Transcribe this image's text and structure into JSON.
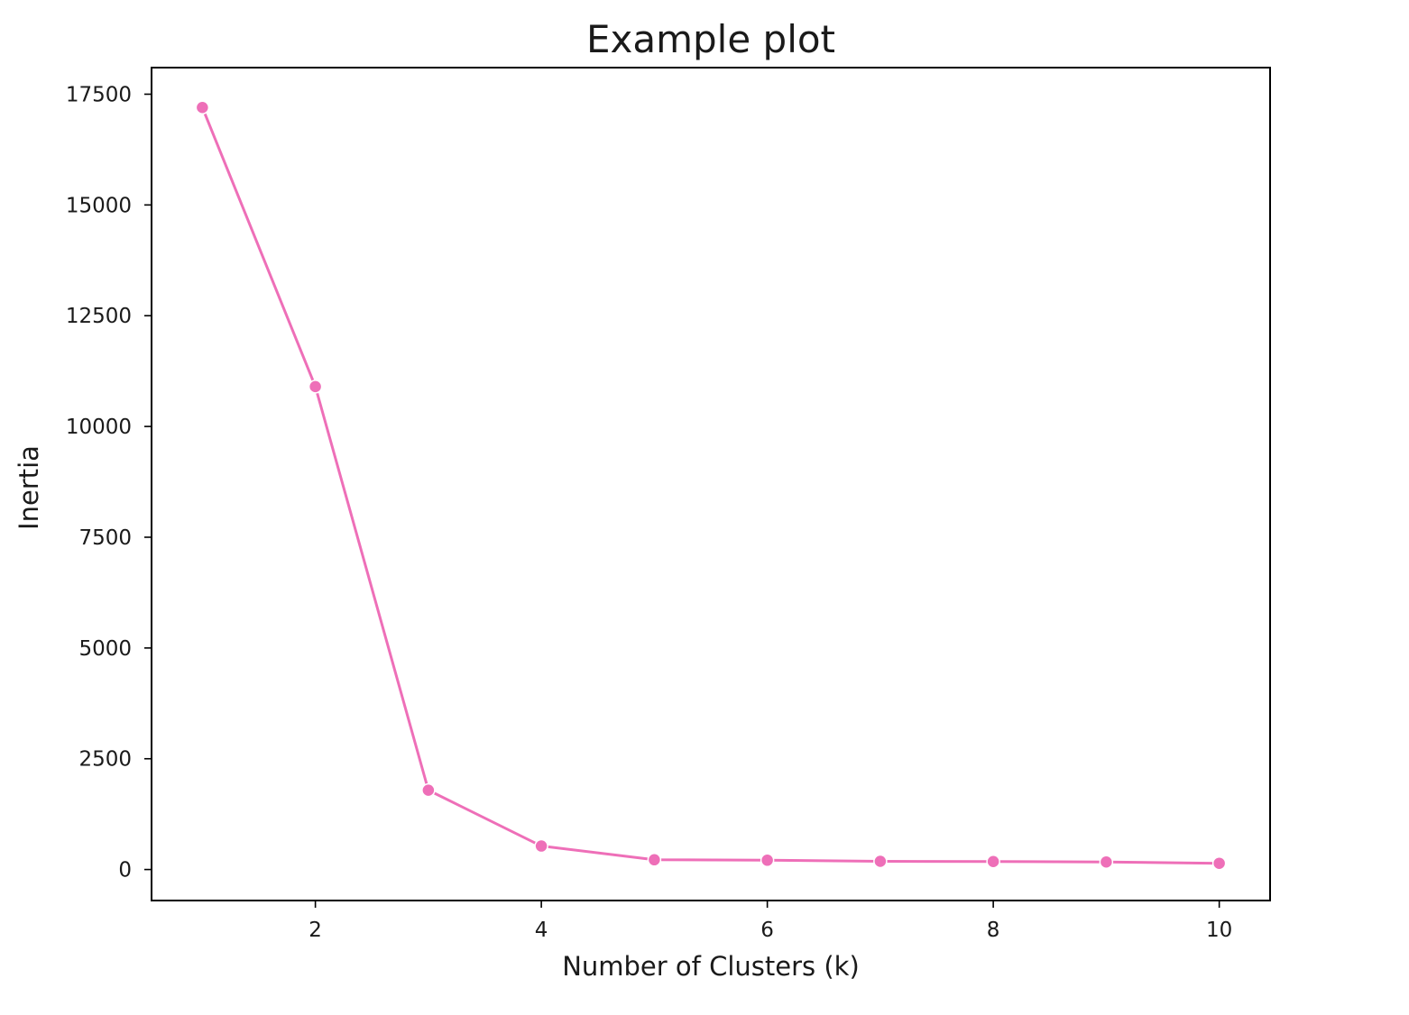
{
  "chart_data": {
    "type": "line",
    "title": "Example plot",
    "xlabel": "Number of Clusters (k)",
    "ylabel": "Inertia",
    "x": [
      1,
      2,
      3,
      4,
      5,
      6,
      7,
      8,
      9,
      10
    ],
    "series": [
      {
        "values": [
          17200,
          10900,
          1790,
          530,
          220,
          210,
          185,
          180,
          170,
          140
        ],
        "color": "#ee6fb8",
        "marker": "circle"
      }
    ],
    "xlim": [
      0.55,
      10.45
    ],
    "ylim": [
      -700,
      18100
    ],
    "xticks": [
      2,
      4,
      6,
      8,
      10
    ],
    "yticks": [
      0,
      2500,
      5000,
      7500,
      10000,
      12500,
      15000,
      17500
    ],
    "grid": false,
    "legend": "none"
  }
}
